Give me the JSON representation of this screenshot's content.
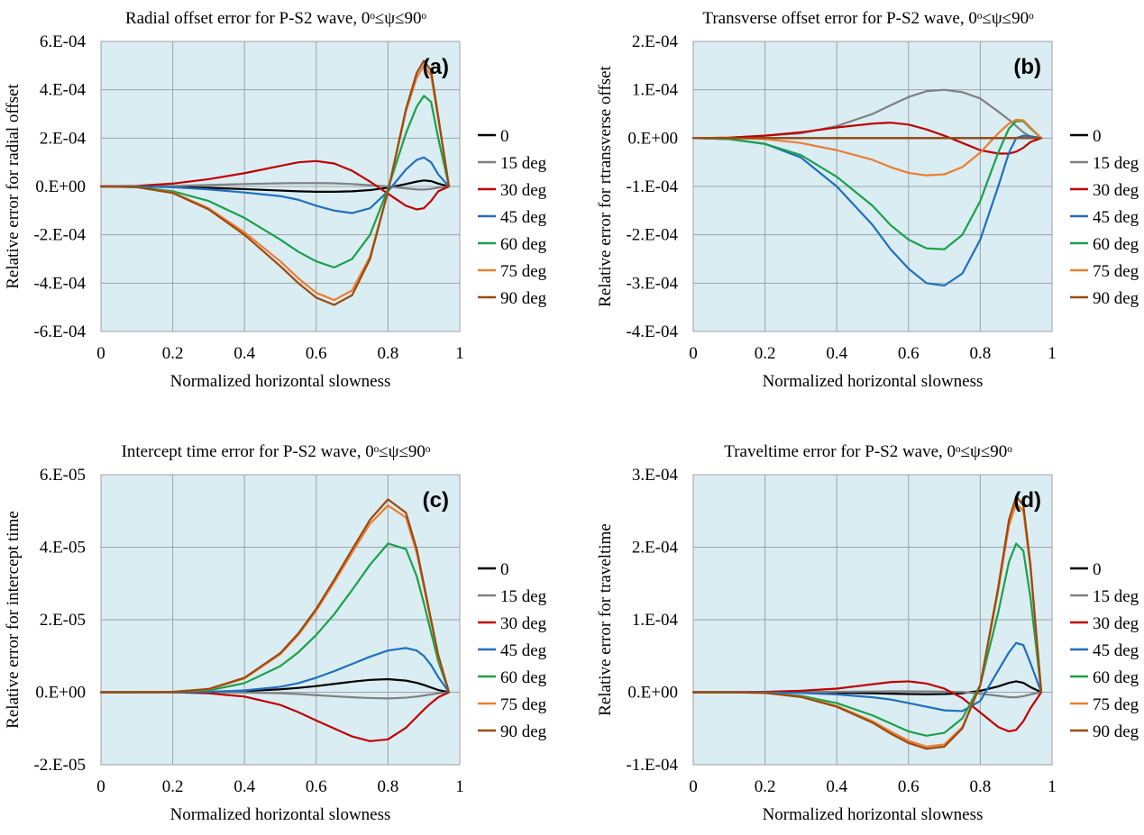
{
  "chart_data": [
    {
      "id": "a",
      "type": "line",
      "panel_label": "(a)",
      "title": "Radial offset error for P-S2 wave, 0ᵒ≤ψ≤90ᵒ",
      "xlabel": "Normalized horizontal slowness",
      "ylabel": "Relative error for radial offset",
      "xlim": [
        0,
        1
      ],
      "ylim": [
        -0.0006,
        0.0006
      ],
      "x_ticks": [
        0,
        0.2,
        0.4,
        0.6,
        0.8,
        1
      ],
      "x_tick_labels": [
        "0",
        "0.2",
        "0.4",
        "0.6",
        "0.8",
        "1"
      ],
      "y_ticks": [
        -0.0006,
        -0.0004,
        -0.0002,
        0,
        0.0002,
        0.0004,
        0.0006
      ],
      "y_tick_labels": [
        "-6.E-04",
        "-4.E-04",
        "-2.E-04",
        "0.E+00",
        "2.E-04",
        "4.E-04",
        "6.E-04"
      ],
      "grid": true,
      "legend_position": "right",
      "x": [
        0,
        0.1,
        0.2,
        0.3,
        0.4,
        0.5,
        0.55,
        0.6,
        0.65,
        0.7,
        0.75,
        0.8,
        0.85,
        0.88,
        0.9,
        0.92,
        0.94,
        0.97
      ],
      "series": [
        {
          "name": "0",
          "color": "#000000",
          "values": [
            0,
            0,
            -2e-06,
            -6e-06,
            -1.1e-05,
            -1.7e-05,
            -2e-05,
            -2.2e-05,
            -2.2e-05,
            -2e-05,
            -1.5e-05,
            -5e-06,
            1e-05,
            2e-05,
            2.5e-05,
            2.2e-05,
            1.2e-05,
            0
          ]
        },
        {
          "name": "15 deg",
          "color": "#808080",
          "values": [
            0,
            0,
            2e-06,
            6e-06,
            1e-05,
            1.3e-05,
            1.4e-05,
            1.4e-05,
            1.3e-05,
            1e-05,
            5e-06,
            0,
            -8e-06,
            -1.2e-05,
            -1.3e-05,
            -1e-05,
            -5e-06,
            0
          ]
        },
        {
          "name": "30 deg",
          "color": "#c00000",
          "values": [
            0,
            2e-06,
            1.2e-05,
            3e-05,
            5.5e-05,
            8.5e-05,
            0.0001,
            0.000105,
            9.5e-05,
            6.5e-05,
            2e-05,
            -3e-05,
            -8e-05,
            -9.5e-05,
            -9e-05,
            -6e-05,
            -2e-05,
            0
          ]
        },
        {
          "name": "45 deg",
          "color": "#1f6fbe",
          "values": [
            0,
            0,
            -3e-06,
            -1.2e-05,
            -2.5e-05,
            -4e-05,
            -5.5e-05,
            -8e-05,
            -0.0001,
            -0.00011,
            -9e-05,
            -2e-05,
            7e-05,
            0.00011,
            0.00012,
            0.0001,
            5e-05,
            0
          ]
        },
        {
          "name": "60 deg",
          "color": "#1aa14a",
          "values": [
            0,
            -2e-06,
            -2e-05,
            -6e-05,
            -0.00013,
            -0.00022,
            -0.00027,
            -0.00031,
            -0.000335,
            -0.0003,
            -0.0002,
            -1e-05,
            0.00022,
            0.00033,
            0.000375,
            0.00035,
            0.0002,
            0
          ]
        },
        {
          "name": "75 deg",
          "color": "#ed7d31",
          "values": [
            0,
            -3e-06,
            -2.5e-05,
            -9e-05,
            -0.00019,
            -0.00031,
            -0.00038,
            -0.00044,
            -0.00047,
            -0.00043,
            -0.00029,
            -2e-05,
            0.00031,
            0.00045,
            0.0005,
            0.00046,
            0.00028,
            0
          ]
        },
        {
          "name": "90 deg",
          "color": "#9a4a0e",
          "values": [
            0,
            -3e-06,
            -2.7e-05,
            -9.5e-05,
            -0.0002,
            -0.00033,
            -0.0004,
            -0.00046,
            -0.00049,
            -0.00045,
            -0.0003,
            -2e-05,
            0.00032,
            0.00047,
            0.00052,
            0.00048,
            0.00029,
            0
          ]
        }
      ]
    },
    {
      "id": "b",
      "type": "line",
      "panel_label": "(b)",
      "title": "Transverse offset error for P-S2 wave, 0ᵒ≤ψ≤90ᵒ",
      "xlabel": "Normalized horizontal slowness",
      "ylabel": "Relative error for rtransverse offset",
      "xlim": [
        0,
        1
      ],
      "ylim": [
        -0.0004,
        0.0002
      ],
      "x_ticks": [
        0,
        0.2,
        0.4,
        0.6,
        0.8,
        1
      ],
      "x_tick_labels": [
        "0",
        "0.2",
        "0.4",
        "0.6",
        "0.8",
        "1"
      ],
      "y_ticks": [
        -0.0004,
        -0.0003,
        -0.0002,
        -0.0001,
        0,
        0.0001,
        0.0002
      ],
      "y_tick_labels": [
        "-4.E-04",
        "-3.E-04",
        "-2.E-04",
        "-1.E-04",
        "0.E+00",
        "1.E-04",
        "2.E-04"
      ],
      "grid": true,
      "legend_position": "right",
      "x": [
        0,
        0.1,
        0.2,
        0.3,
        0.4,
        0.5,
        0.55,
        0.6,
        0.65,
        0.7,
        0.75,
        0.8,
        0.85,
        0.88,
        0.9,
        0.92,
        0.94,
        0.97
      ],
      "series": [
        {
          "name": "0",
          "color": "#000000",
          "values": [
            0,
            0,
            0,
            0,
            0,
            0,
            0,
            0,
            0,
            0,
            0,
            0,
            0,
            0,
            0,
            0,
            0,
            0
          ]
        },
        {
          "name": "15 deg",
          "color": "#808080",
          "values": [
            0,
            1e-06,
            5e-06,
            1e-05,
            2.5e-05,
            5e-05,
            6.8e-05,
            8.5e-05,
            9.7e-05,
            0.0001,
            9.5e-05,
            8.2e-05,
            5.5e-05,
            3.8e-05,
            2.5e-05,
            1.2e-05,
            3e-06,
            0
          ]
        },
        {
          "name": "30 deg",
          "color": "#c00000",
          "values": [
            0,
            1e-06,
            5e-06,
            1.2e-05,
            2.2e-05,
            3e-05,
            3.2e-05,
            2.8e-05,
            1.8e-05,
            5e-06,
            -1e-05,
            -2.5e-05,
            -3.2e-05,
            -3.2e-05,
            -2.8e-05,
            -2e-05,
            -8e-06,
            0
          ]
        },
        {
          "name": "45 deg",
          "color": "#1f6fbe",
          "values": [
            0,
            -2e-06,
            -1.2e-05,
            -4e-05,
            -0.0001,
            -0.00018,
            -0.00023,
            -0.00027,
            -0.0003,
            -0.000305,
            -0.00028,
            -0.00021,
            -0.0001,
            -3e-05,
            0,
            5e-06,
            4e-06,
            0
          ]
        },
        {
          "name": "60 deg",
          "color": "#1aa14a",
          "values": [
            0,
            -2e-06,
            -1.2e-05,
            -3.5e-05,
            -8e-05,
            -0.00014,
            -0.00018,
            -0.00021,
            -0.000228,
            -0.00023,
            -0.0002,
            -0.00013,
            -3e-05,
            2e-05,
            3.5e-05,
            3.5e-05,
            2e-05,
            0
          ]
        },
        {
          "name": "75 deg",
          "color": "#ed7d31",
          "values": [
            0,
            0,
            -2e-06,
            -1e-05,
            -2.5e-05,
            -4.5e-05,
            -6e-05,
            -7.2e-05,
            -7.7e-05,
            -7.5e-05,
            -6e-05,
            -3e-05,
            1e-05,
            3e-05,
            3.8e-05,
            3.7e-05,
            2.2e-05,
            0
          ]
        },
        {
          "name": "90 deg",
          "color": "#9a4a0e",
          "values": [
            0,
            0,
            0,
            0,
            0,
            0,
            0,
            0,
            0,
            0,
            0,
            0,
            0,
            0,
            0,
            0,
            0,
            0
          ]
        }
      ]
    },
    {
      "id": "c",
      "type": "line",
      "panel_label": "(c)",
      "title": "Intercept time error for P-S2 wave, 0ᵒ≤ψ≤90ᵒ",
      "xlabel": "Normalized horizontal slowness",
      "ylabel": "Relative error for intercept time",
      "xlim": [
        0,
        1
      ],
      "ylim": [
        -2e-05,
        6e-05
      ],
      "x_ticks": [
        0,
        0.2,
        0.4,
        0.6,
        0.8,
        1
      ],
      "x_tick_labels": [
        "0",
        "0.2",
        "0.4",
        "0.6",
        "0.8",
        "1"
      ],
      "y_ticks": [
        -2e-05,
        0,
        2e-05,
        4e-05,
        6e-05
      ],
      "y_tick_labels": [
        "-2.E-05",
        "0.E+00",
        "2.E-05",
        "4.E-05",
        "6.E-05"
      ],
      "grid": true,
      "legend_position": "right",
      "x": [
        0,
        0.1,
        0.2,
        0.3,
        0.4,
        0.5,
        0.55,
        0.6,
        0.65,
        0.7,
        0.75,
        0.8,
        0.85,
        0.88,
        0.9,
        0.92,
        0.94,
        0.97
      ],
      "series": [
        {
          "name": "0",
          "color": "#000000",
          "values": [
            0,
            0,
            0,
            1e-07,
            3e-07,
            8e-07,
            1.2e-06,
            1.7e-06,
            2.3e-06,
            2.9e-06,
            3.4e-06,
            3.6e-06,
            3.2e-06,
            2.6e-06,
            2e-06,
            1.3e-06,
            6e-07,
            0
          ]
        },
        {
          "name": "15 deg",
          "color": "#808080",
          "values": [
            0,
            0,
            0,
            0,
            -1e-07,
            -3e-07,
            -5e-07,
            -8e-07,
            -1.1e-06,
            -1.4e-06,
            -1.6e-06,
            -1.7e-06,
            -1.5e-06,
            -1.2e-06,
            -9e-07,
            -6e-07,
            -3e-07,
            0
          ]
        },
        {
          "name": "30 deg",
          "color": "#c00000",
          "values": [
            0,
            0,
            0,
            -3e-07,
            -1.2e-06,
            -3.5e-06,
            -5.5e-06,
            -7.8e-06,
            -1e-05,
            -1.22e-05,
            -1.35e-05,
            -1.3e-05,
            -9.8e-06,
            -6.8e-06,
            -4.8e-06,
            -3e-06,
            -1.4e-06,
            0
          ]
        },
        {
          "name": "45 deg",
          "color": "#1f6fbe",
          "values": [
            0,
            0,
            0,
            1e-07,
            5e-07,
            1.5e-06,
            2.5e-06,
            4e-06,
            5.8e-06,
            7.8e-06,
            9.8e-06,
            1.15e-05,
            1.22e-05,
            1.15e-05,
            1e-05,
            7.5e-06,
            4.2e-06,
            0
          ]
        },
        {
          "name": "60 deg",
          "color": "#1aa14a",
          "values": [
            0,
            0,
            1e-07,
            5e-07,
            2.5e-06,
            7.2e-06,
            1.1e-05,
            1.58e-05,
            2.15e-05,
            2.82e-05,
            3.52e-05,
            4.1e-05,
            3.95e-05,
            3.2e-05,
            2.45e-05,
            1.65e-05,
            8.5e-06,
            0
          ]
        },
        {
          "name": "75 deg",
          "color": "#ed7d31",
          "values": [
            0,
            0,
            1e-07,
            8e-07,
            3.8e-06,
            1.05e-05,
            1.58e-05,
            2.25e-05,
            3.03e-05,
            3.85e-05,
            4.65e-05,
            5.15e-05,
            4.82e-05,
            3.85e-05,
            2.9e-05,
            1.95e-05,
            1e-05,
            0
          ]
        },
        {
          "name": "90 deg",
          "color": "#9a4a0e",
          "values": [
            0,
            0,
            1e-07,
            9e-07,
            4e-06,
            1.08e-05,
            1.62e-05,
            2.3e-05,
            3.1e-05,
            3.94e-05,
            4.76e-05,
            5.32e-05,
            4.95e-05,
            3.95e-05,
            2.98e-05,
            2e-05,
            1.03e-05,
            0
          ]
        }
      ]
    },
    {
      "id": "d",
      "type": "line",
      "panel_label": "(d)",
      "title": "Traveltime error for P-S2 wave, 0ᵒ≤ψ≤90ᵒ",
      "xlabel": "Normalized horizontal slowness",
      "ylabel": "Relative error for traveltime",
      "xlim": [
        0,
        1
      ],
      "ylim": [
        -0.0001,
        0.0003
      ],
      "x_ticks": [
        0,
        0.2,
        0.4,
        0.6,
        0.8,
        1
      ],
      "x_tick_labels": [
        "0",
        "0.2",
        "0.4",
        "0.6",
        "0.8",
        "1"
      ],
      "y_ticks": [
        -0.0001,
        0,
        0.0001,
        0.0002,
        0.0003
      ],
      "y_tick_labels": [
        "-1.E-04",
        "0.E+00",
        "1.E-04",
        "2.E-04",
        "3.E-04"
      ],
      "grid": true,
      "legend_position": "right",
      "x": [
        0,
        0.1,
        0.2,
        0.3,
        0.4,
        0.5,
        0.55,
        0.6,
        0.65,
        0.7,
        0.75,
        0.8,
        0.85,
        0.88,
        0.9,
        0.92,
        0.94,
        0.97
      ],
      "series": [
        {
          "name": "0",
          "color": "#000000",
          "values": [
            0,
            0,
            0,
            -3e-07,
            -8e-07,
            -1.5e-06,
            -2e-06,
            -2.5e-06,
            -2.8e-06,
            -2.5e-06,
            -1.5e-06,
            2e-06,
            8e-06,
            1.3e-05,
            1.5e-05,
            1.3e-05,
            7e-06,
            0
          ]
        },
        {
          "name": "15 deg",
          "color": "#808080",
          "values": [
            0,
            0,
            0,
            2e-07,
            6e-07,
            1e-06,
            1.2e-06,
            1.2e-06,
            1.1e-06,
            8e-07,
            3e-07,
            -2e-06,
            -5e-06,
            -6.8e-06,
            -7e-06,
            -5.5e-06,
            -3e-06,
            0
          ]
        },
        {
          "name": "30 deg",
          "color": "#c00000",
          "values": [
            0,
            0,
            5e-07,
            2e-06,
            5e-06,
            1.1e-05,
            1.4e-05,
            1.5e-05,
            1.2e-05,
            5e-06,
            -8e-06,
            -2.8e-05,
            -4.8e-05,
            -5.4e-05,
            -5.2e-05,
            -4e-05,
            -2.2e-05,
            0
          ]
        },
        {
          "name": "45 deg",
          "color": "#1f6fbe",
          "values": [
            0,
            0,
            -2e-07,
            -1e-06,
            -3e-06,
            -7e-06,
            -1e-05,
            -1.5e-05,
            -2e-05,
            -2.5e-05,
            -2.6e-05,
            -1.2e-05,
            3e-05,
            5.5e-05,
            6.8e-05,
            6.5e-05,
            4e-05,
            0
          ]
        },
        {
          "name": "60 deg",
          "color": "#1aa14a",
          "values": [
            0,
            0,
            -1e-06,
            -5e-06,
            -1.5e-05,
            -3.2e-05,
            -4.3e-05,
            -5.4e-05,
            -6e-05,
            -5.6e-05,
            -3.6e-05,
            1e-05,
            0.00011,
            0.00018,
            0.000205,
            0.000195,
            0.00013,
            0
          ]
        },
        {
          "name": "75 deg",
          "color": "#ed7d31",
          "values": [
            0,
            0,
            -1e-06,
            -6e-06,
            -1.9e-05,
            -4e-05,
            -5.4e-05,
            -6.7e-05,
            -7.5e-05,
            -7.2e-05,
            -4.8e-05,
            1e-05,
            0.00014,
            0.00023,
            0.00026,
            0.00025,
            0.00017,
            0
          ]
        },
        {
          "name": "90 deg",
          "color": "#9a4a0e",
          "values": [
            0,
            0,
            -1e-06,
            -6.5e-06,
            -2e-05,
            -4.2e-05,
            -5.7e-05,
            -7e-05,
            -7.8e-05,
            -7.5e-05,
            -5e-05,
            1e-05,
            0.000145,
            0.000238,
            0.00027,
            0.000258,
            0.000175,
            0
          ]
        }
      ]
    }
  ]
}
